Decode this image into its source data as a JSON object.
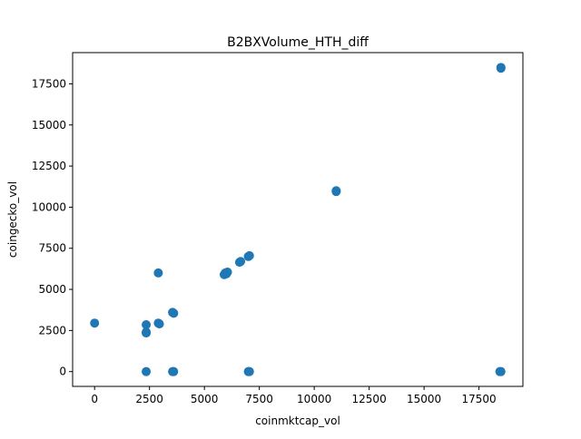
{
  "chart_data": {
    "type": "scatter",
    "title": "B2BXVolume_HTH_diff",
    "xlabel": "coinmktcap_vol",
    "ylabel": "coingecko_vol",
    "xlim": [
      -1000,
      19500
    ],
    "ylim": [
      -900,
      19400
    ],
    "xticks": [
      0,
      2500,
      5000,
      7500,
      10000,
      12500,
      15000,
      17500
    ],
    "xtick_labels": [
      "0",
      "2500",
      "5000",
      "7500",
      "10000",
      "12500",
      "15000",
      "17500"
    ],
    "yticks": [
      0,
      2500,
      5000,
      7500,
      10000,
      12500,
      15000,
      17500
    ],
    "ytick_labels": [
      "0",
      "2500",
      "5000",
      "7500",
      "10000",
      "12500",
      "15000",
      "17500"
    ],
    "grid": false,
    "marker_color": "#1f77b4",
    "points": [
      {
        "x": 0,
        "y": 2950
      },
      {
        "x": 2350,
        "y": 2850
      },
      {
        "x": 2350,
        "y": 2400
      },
      {
        "x": 2350,
        "y": 2350
      },
      {
        "x": 2350,
        "y": 0
      },
      {
        "x": 2900,
        "y": 6000
      },
      {
        "x": 2900,
        "y": 2950
      },
      {
        "x": 2950,
        "y": 2900
      },
      {
        "x": 3550,
        "y": 3600
      },
      {
        "x": 3600,
        "y": 3550
      },
      {
        "x": 3550,
        "y": 0
      },
      {
        "x": 3600,
        "y": 0
      },
      {
        "x": 5900,
        "y": 5900
      },
      {
        "x": 5950,
        "y": 6000
      },
      {
        "x": 6000,
        "y": 5950
      },
      {
        "x": 6050,
        "y": 6050
      },
      {
        "x": 6600,
        "y": 6650
      },
      {
        "x": 6650,
        "y": 6700
      },
      {
        "x": 7000,
        "y": 7000
      },
      {
        "x": 7050,
        "y": 7050
      },
      {
        "x": 7000,
        "y": 0
      },
      {
        "x": 7050,
        "y": 0
      },
      {
        "x": 11000,
        "y": 10950
      },
      {
        "x": 11000,
        "y": 11000
      },
      {
        "x": 18500,
        "y": 18450
      },
      {
        "x": 18500,
        "y": 18500
      },
      {
        "x": 18500,
        "y": 0
      },
      {
        "x": 18450,
        "y": 0
      }
    ]
  }
}
